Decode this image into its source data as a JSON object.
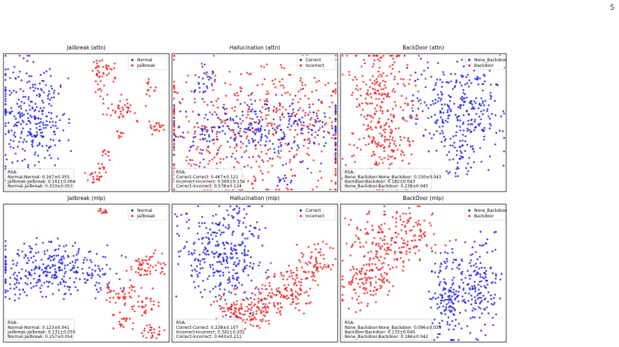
{
  "page_number": "5",
  "panels": [
    {
      "title": "Jailbreak (attn)",
      "legend": [
        {
          "name": "Normal",
          "color": "#1f1fe6"
        },
        {
          "name": "Jailbreak",
          "color": "#ee2020"
        }
      ],
      "rsa": {
        "label": "RSA:",
        "lines": [
          "Normal-Normal: 0.167±0.055",
          "Jailbreak-Jailbreak: 0.161±0.064",
          "Normal-Jailbreak: 0.333±0.053"
        ]
      }
    },
    {
      "title": "Hallucination (attn)",
      "legend": [
        {
          "name": "Correct",
          "color": "#1f1fe6"
        },
        {
          "name": "Incorrect",
          "color": "#ee2020"
        }
      ],
      "rsa": {
        "label": "RSA:",
        "lines": [
          "Correct-Correct: 0.467±0.122",
          "Incorrect-Incorrect: 0.560±0.134",
          "Correct-Incorrect: 0.578±0.124"
        ]
      }
    },
    {
      "title": "BackDoor (attn)",
      "legend": [
        {
          "name": "None_Backdoor",
          "color": "#1f1fe6"
        },
        {
          "name": "Backdoor",
          "color": "#ee2020"
        }
      ],
      "rsa": {
        "label": "RSA:",
        "lines": [
          "None_Backdoor-None_Backdoor: 0.150±0.043",
          "Backdoor-Backdoor: 0.182±0.043",
          "None_Backdoor-Backdoor: 0.238±0.045"
        ]
      }
    },
    {
      "title": "Jailbreak (mlp)",
      "legend": [
        {
          "name": "Normal",
          "color": "#1f1fe6"
        },
        {
          "name": "Jailbreak",
          "color": "#ee2020"
        }
      ],
      "rsa": {
        "label": "RSA:",
        "lines": [
          "Normal-Normal: 0.123±0.041",
          "Jailbreak-Jailbreak: 0.131±0.055",
          "Normal-Jailbreak: 0.257±0.054"
        ]
      }
    },
    {
      "title": "Hallucination (mlp)",
      "legend": [
        {
          "name": "Correct",
          "color": "#1f1fe6"
        },
        {
          "name": "Incorrect",
          "color": "#ee2020"
        }
      ],
      "rsa": {
        "label": "RSA:",
        "lines": [
          "Correct-Correct: 0.238±0.107",
          "Incorrect-Incorrect: 0.341±0.201",
          "Correct-Incorrect: 0.443±0.211"
        ]
      }
    },
    {
      "title": "BackDoor (mlp)",
      "legend": [
        {
          "name": "None_Backdoor",
          "color": "#1f1fe6"
        },
        {
          "name": "Backdoor",
          "color": "#ee2020"
        }
      ],
      "rsa": {
        "label": "RSA:",
        "lines": [
          "None_Backdoor-None_Backdoor: 0.096±0.033",
          "Backdoor-Backdoor: 0.133±0.040",
          "None_Backdoor-Backdoor: 0.186±0.042"
        ]
      }
    }
  ]
}
